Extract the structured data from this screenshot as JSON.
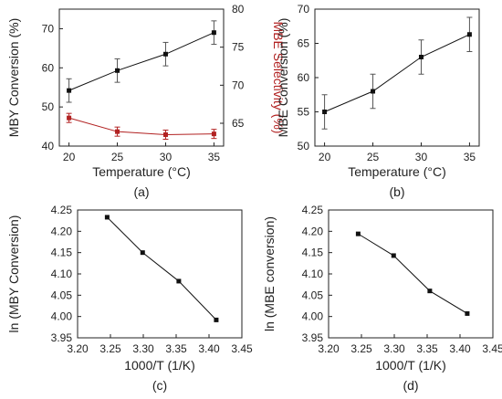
{
  "colors": {
    "axis": "#222222",
    "series": "#111111",
    "selectivity": "#b22222"
  },
  "chart_data": [
    {
      "type": "line",
      "panel_label": "(a)",
      "xlabel": "Temperature (°C)",
      "ylabel": "MBY Conversion (%)",
      "y2label": "MBE Selectivity  (%)",
      "xlim": [
        19,
        36
      ],
      "ylim": [
        40,
        75
      ],
      "y2lim": [
        62,
        80
      ],
      "xticks": [
        "20",
        "25",
        "30",
        "35"
      ],
      "yticks": [
        "40",
        "50",
        "60",
        "70"
      ],
      "y2ticks": [
        "65",
        "70",
        "75",
        "80"
      ],
      "series": [
        {
          "axis": "left",
          "x": [
            20,
            25,
            30,
            35
          ],
          "values": [
            54.2,
            59.3,
            63.5,
            69.0
          ],
          "err": [
            3.0,
            3.0,
            3.0,
            3.0
          ]
        },
        {
          "axis": "right",
          "x": [
            20,
            25,
            30,
            35
          ],
          "values": [
            65.7,
            63.9,
            63.5,
            63.6
          ],
          "err": [
            0.6,
            0.6,
            0.6,
            0.6
          ]
        }
      ]
    },
    {
      "type": "line",
      "panel_label": "(b)",
      "xlabel": "Temperature (°C)",
      "ylabel": "MBE Conversion (%)",
      "xlim": [
        19,
        36
      ],
      "ylim": [
        50,
        70
      ],
      "xticks": [
        "20",
        "25",
        "30",
        "35"
      ],
      "yticks": [
        "50",
        "55",
        "60",
        "65",
        "70"
      ],
      "series": [
        {
          "x": [
            20,
            25,
            30,
            35
          ],
          "values": [
            55.0,
            58.0,
            63.0,
            66.3
          ],
          "err": [
            2.5,
            2.5,
            2.5,
            2.5
          ]
        }
      ]
    },
    {
      "type": "line",
      "panel_label": "(c)",
      "xlabel": "1000/T (1/K)",
      "ylabel": "ln (MBY Conversion)",
      "xlim": [
        3.2,
        3.45
      ],
      "ylim": [
        3.95,
        4.25
      ],
      "xticks": [
        "3.20",
        "3.25",
        "3.30",
        "3.35",
        "3.40",
        "3.45"
      ],
      "yticks": [
        "3.95",
        "4.00",
        "4.05",
        "4.10",
        "4.15",
        "4.20",
        "4.25"
      ],
      "series": [
        {
          "x": [
            3.245,
            3.299,
            3.354,
            3.411
          ],
          "values": [
            4.233,
            4.15,
            4.083,
            3.992
          ]
        }
      ]
    },
    {
      "type": "line",
      "panel_label": "(d)",
      "xlabel": "1000/T (1/K)",
      "ylabel": "ln (MBE conversion)",
      "xlim": [
        3.2,
        3.45
      ],
      "ylim": [
        3.95,
        4.25
      ],
      "xticks": [
        "3.20",
        "3.25",
        "3.30",
        "3.35",
        "3.40",
        "3.45"
      ],
      "yticks": [
        "3.95",
        "4.00",
        "4.05",
        "4.10",
        "4.15",
        "4.20",
        "4.25"
      ],
      "series": [
        {
          "x": [
            3.245,
            3.299,
            3.354,
            3.411
          ],
          "values": [
            4.194,
            4.143,
            4.06,
            4.007
          ]
        }
      ]
    }
  ]
}
